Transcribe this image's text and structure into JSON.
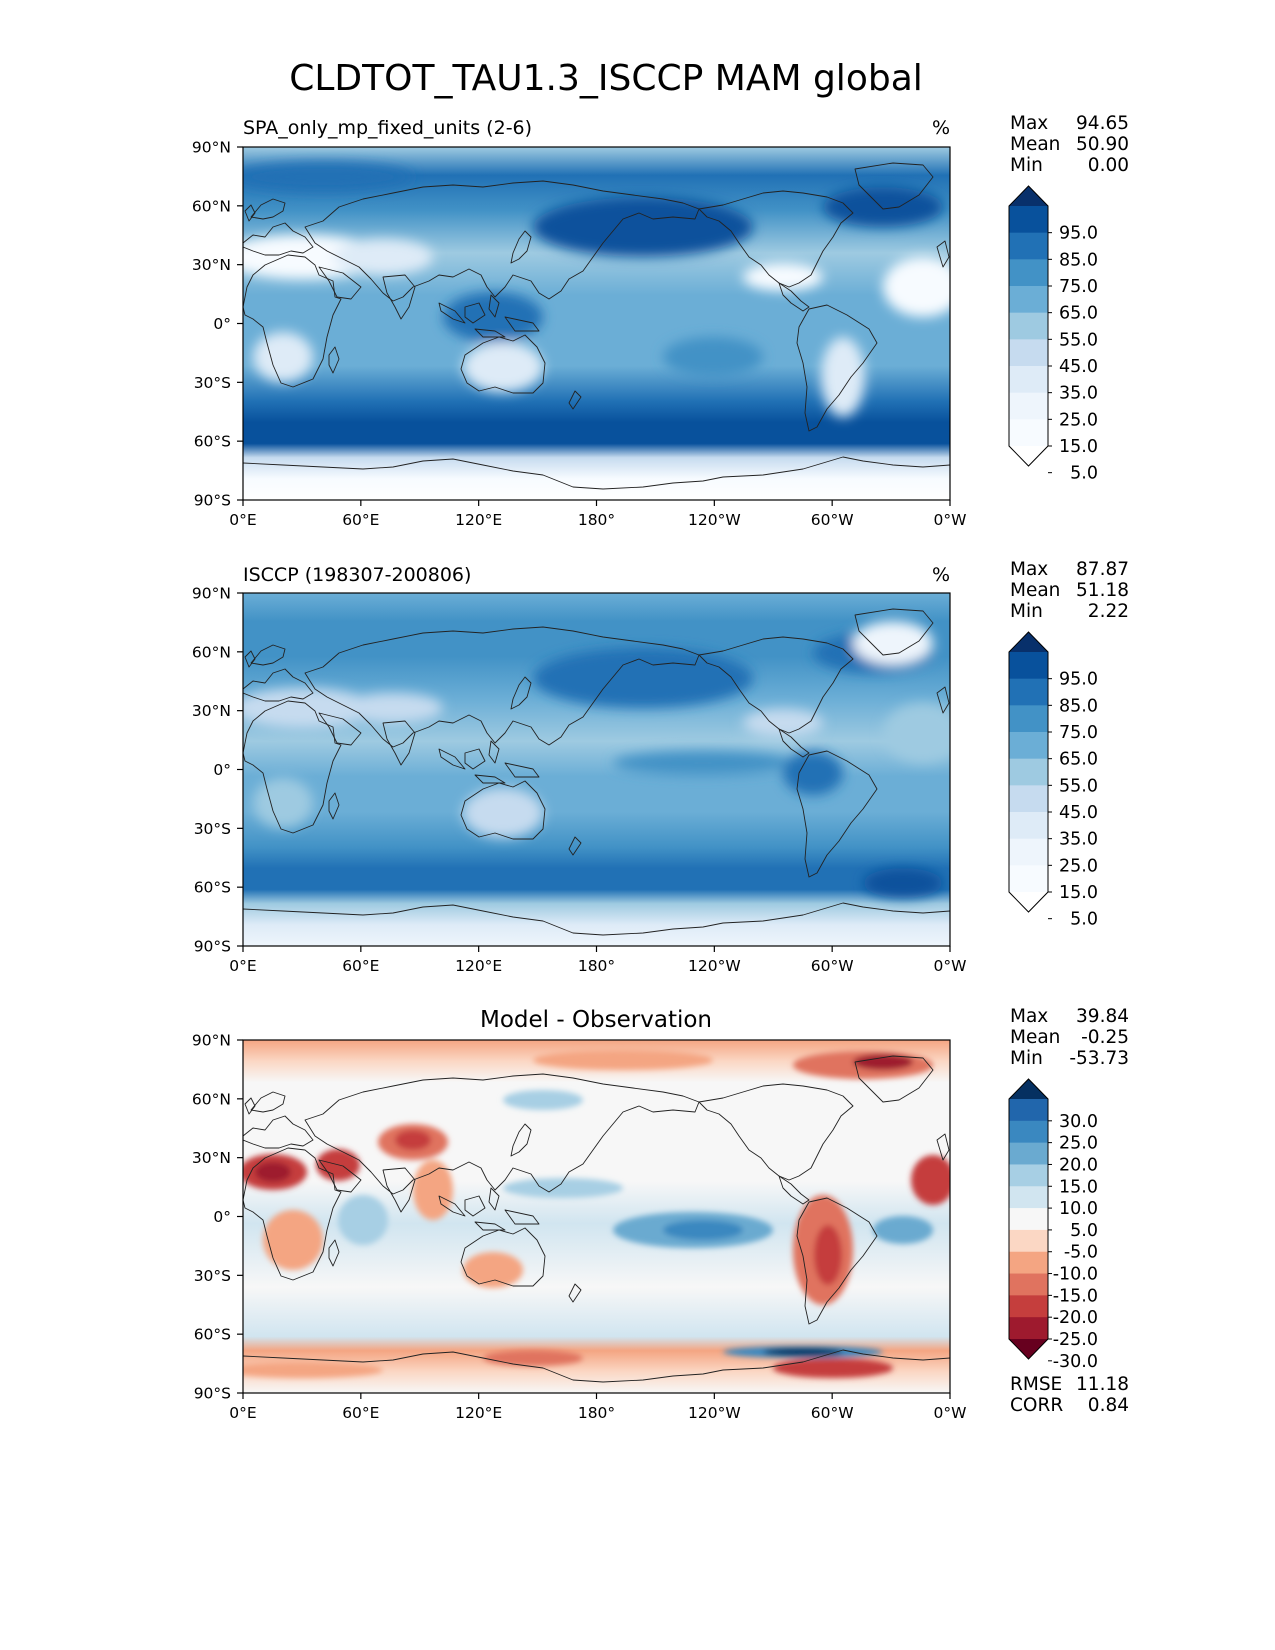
{
  "figure": {
    "title": "CLDTOT_TAU1.3_ISCCP MAM global"
  },
  "panels": [
    {
      "id": "model",
      "left_title": "SPA_only_mp_fixed_units (2-6)",
      "center_title": "",
      "right_title": "%",
      "stats": [
        {
          "label": "Max",
          "value": "94.65"
        },
        {
          "label": "Mean",
          "value": "50.90"
        },
        {
          "label": "Min",
          "value": "0.00"
        }
      ],
      "colorbar": {
        "labels": [
          "95.0",
          "85.0",
          "75.0",
          "65.0",
          "55.0",
          "45.0",
          "35.0",
          "25.0",
          "15.0",
          "5.0"
        ],
        "colors": [
          "#08306b",
          "#08519c",
          "#2171b5",
          "#4292c6",
          "#6baed6",
          "#9ecae1",
          "#c6dbef",
          "#deebf7",
          "#eef5fc",
          "#f7fbff",
          "#ffffff"
        ]
      },
      "footer_stats": []
    },
    {
      "id": "obs",
      "left_title": "ISCCP (198307-200806)",
      "center_title": "",
      "right_title": "%",
      "stats": [
        {
          "label": "Max",
          "value": "87.87"
        },
        {
          "label": "Mean",
          "value": "51.18"
        },
        {
          "label": "Min",
          "value": "2.22"
        }
      ],
      "colorbar": {
        "labels": [
          "95.0",
          "85.0",
          "75.0",
          "65.0",
          "55.0",
          "45.0",
          "35.0",
          "25.0",
          "15.0",
          "5.0"
        ],
        "colors": [
          "#08306b",
          "#08519c",
          "#2171b5",
          "#4292c6",
          "#6baed6",
          "#9ecae1",
          "#c6dbef",
          "#deebf7",
          "#eef5fc",
          "#f7fbff",
          "#ffffff"
        ]
      },
      "footer_stats": []
    },
    {
      "id": "diff",
      "left_title": "",
      "center_title": "Model - Observation",
      "right_title": "",
      "stats": [
        {
          "label": "Max",
          "value": "39.84"
        },
        {
          "label": "Mean",
          "value": "-0.25"
        },
        {
          "label": "Min",
          "value": "-53.73"
        }
      ],
      "colorbar": {
        "labels": [
          "30.0",
          "25.0",
          "20.0",
          "15.0",
          "10.0",
          "5.0",
          "-5.0",
          "-10.0",
          "-15.0",
          "-20.0",
          "-25.0",
          "-30.0"
        ],
        "colors": [
          "#053061",
          "#2166ac",
          "#3a88c0",
          "#6aaad0",
          "#a7cfe4",
          "#d1e5f0",
          "#f7f7f7",
          "#fbd7c4",
          "#f4a582",
          "#e0735f",
          "#c53e3d",
          "#9e1a2e",
          "#67001f"
        ]
      },
      "footer_stats": [
        {
          "label": "RMSE",
          "value": "11.18"
        },
        {
          "label": "CORR",
          "value": "0.84"
        }
      ]
    }
  ],
  "chart_data": {
    "type": "heatmap",
    "projection": "equirectangular (PlateCarree), central longitude 180",
    "x_ticks": [
      "0°E",
      "60°E",
      "120°E",
      "180°",
      "120°W",
      "60°W",
      "0°W"
    ],
    "y_ticks": [
      "90°N",
      "60°N",
      "30°N",
      "0°",
      "30°S",
      "60°S",
      "90°S"
    ],
    "xlim": [
      0,
      360
    ],
    "ylim": [
      -90,
      90
    ],
    "grid": false,
    "legend": "colorbar right of each panel",
    "series": [
      {
        "panel": "model",
        "units": "%",
        "contour_levels": [
          0,
          5,
          15,
          25,
          35,
          45,
          55,
          65,
          75,
          85,
          95,
          100
        ],
        "stats": {
          "max": 94.65,
          "mean": 50.9,
          "min": 0.0
        }
      },
      {
        "panel": "obs",
        "units": "%",
        "contour_levels": [
          0,
          5,
          15,
          25,
          35,
          45,
          55,
          65,
          75,
          85,
          95,
          100
        ],
        "stats": {
          "max": 87.87,
          "mean": 51.18,
          "min": 2.22
        }
      },
      {
        "panel": "diff",
        "contour_levels": [
          -30,
          -25,
          -20,
          -15,
          -10,
          -5,
          5,
          10,
          15,
          20,
          25,
          30
        ],
        "stats": {
          "max": 39.84,
          "mean": -0.25,
          "min": -53.73,
          "rmse": 11.18,
          "corr": 0.84
        }
      }
    ]
  }
}
